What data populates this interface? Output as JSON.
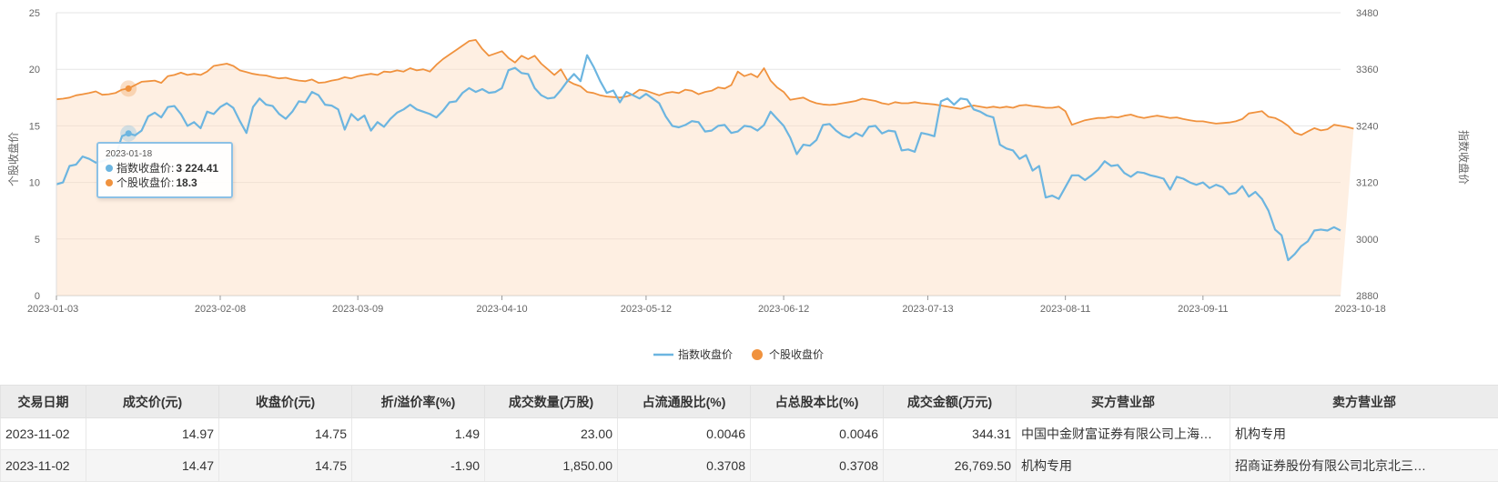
{
  "chart_data": {
    "type": "line",
    "y_left": {
      "title": "个股收盘价",
      "ticks": [
        0,
        5,
        10,
        15,
        20,
        25
      ],
      "range": [
        0,
        25
      ]
    },
    "y_right": {
      "title": "指数收盘价",
      "ticks": [
        2880,
        3000,
        3120,
        3240,
        3360,
        3480
      ],
      "range": [
        2880,
        3480
      ]
    },
    "x_ticks": [
      "2023-01-03",
      "2023-02-08",
      "2023-03-09",
      "2023-04-10",
      "2023-05-12",
      "2023-06-12",
      "2023-07-13",
      "2023-08-11",
      "2023-09-11",
      "2023-10-18"
    ],
    "grid": true,
    "legend_position": "bottom-center",
    "series": [
      {
        "name": "指数收盘价",
        "axis": "right",
        "color": "#6cb5e0",
        "values": [
          3116,
          3120,
          3155,
          3158,
          3175,
          3170,
          3162,
          3165,
          3170,
          3175,
          3218,
          3224,
          3220,
          3230,
          3260,
          3268,
          3258,
          3280,
          3282,
          3265,
          3240,
          3248,
          3235,
          3270,
          3265,
          3280,
          3288,
          3278,
          3250,
          3225,
          3280,
          3298,
          3285,
          3282,
          3265,
          3255,
          3270,
          3292,
          3290,
          3312,
          3305,
          3285,
          3283,
          3275,
          3232,
          3265,
          3252,
          3262,
          3230,
          3248,
          3238,
          3255,
          3268,
          3275,
          3285,
          3275,
          3270,
          3265,
          3258,
          3272,
          3290,
          3292,
          3310,
          3320,
          3312,
          3318,
          3310,
          3312,
          3320,
          3358,
          3363,
          3352,
          3350,
          3320,
          3305,
          3298,
          3300,
          3316,
          3335,
          3350,
          3335,
          3390,
          3365,
          3335,
          3310,
          3315,
          3290,
          3312,
          3305,
          3298,
          3308,
          3298,
          3288,
          3260,
          3240,
          3237,
          3242,
          3250,
          3248,
          3228,
          3230,
          3240,
          3242,
          3225,
          3228,
          3240,
          3238,
          3230,
          3242,
          3270,
          3255,
          3240,
          3215,
          3180,
          3200,
          3198,
          3210,
          3242,
          3244,
          3230,
          3220,
          3215,
          3225,
          3218,
          3238,
          3240,
          3224,
          3230,
          3228,
          3188,
          3190,
          3185,
          3225,
          3222,
          3218,
          3292,
          3298,
          3285,
          3298,
          3296,
          3275,
          3270,
          3262,
          3258,
          3200,
          3192,
          3188,
          3170,
          3178,
          3145,
          3155,
          3088,
          3092,
          3085,
          3110,
          3135,
          3135,
          3125,
          3135,
          3147,
          3165,
          3155,
          3157,
          3140,
          3132,
          3142,
          3140,
          3135,
          3132,
          3128,
          3105,
          3132,
          3128,
          3120,
          3115,
          3120,
          3108,
          3115,
          3110,
          3095,
          3098,
          3112,
          3090,
          3100,
          3085,
          3060,
          3020,
          3008,
          2955,
          2968,
          2985,
          2995,
          3018,
          3020,
          3018,
          3025,
          3018
        ]
      },
      {
        "name": "个股收盘价",
        "axis": "left",
        "color": "#f0923e",
        "values": [
          17.35,
          17.4,
          17.5,
          17.7,
          17.8,
          17.9,
          18.05,
          17.75,
          17.8,
          17.9,
          18.2,
          18.3,
          18.6,
          18.9,
          18.95,
          19.0,
          18.8,
          19.4,
          19.5,
          19.7,
          19.5,
          19.6,
          19.5,
          19.8,
          20.3,
          20.4,
          20.5,
          20.3,
          19.9,
          19.75,
          19.6,
          19.5,
          19.45,
          19.3,
          19.2,
          19.25,
          19.1,
          19.0,
          18.95,
          19.1,
          18.8,
          18.85,
          19.0,
          19.1,
          19.3,
          19.2,
          19.4,
          19.5,
          19.6,
          19.5,
          19.8,
          19.75,
          19.9,
          19.8,
          20.1,
          19.9,
          20.0,
          19.8,
          20.4,
          20.9,
          21.3,
          21.7,
          22.1,
          22.5,
          22.6,
          21.8,
          21.2,
          21.4,
          21.6,
          21.0,
          20.6,
          21.2,
          20.9,
          21.2,
          20.5,
          20.0,
          19.5,
          20.0,
          19.0,
          18.7,
          18.5,
          18.0,
          17.9,
          17.7,
          17.6,
          17.55,
          17.5,
          17.6,
          17.8,
          18.2,
          18.1,
          17.9,
          17.7,
          17.9,
          18.0,
          17.9,
          18.2,
          18.1,
          17.8,
          18.0,
          18.1,
          18.4,
          18.3,
          18.6,
          19.8,
          19.4,
          19.6,
          19.3,
          20.1,
          19.0,
          18.4,
          18.0,
          17.3,
          17.4,
          17.5,
          17.2,
          17.0,
          16.9,
          16.85,
          16.9,
          17.0,
          17.1,
          17.2,
          17.4,
          17.3,
          17.2,
          17.0,
          16.9,
          17.1,
          17.0,
          17.0,
          17.1,
          17.0,
          16.95,
          16.9,
          16.8,
          16.7,
          16.6,
          16.5,
          16.7,
          16.8,
          16.7,
          16.6,
          16.7,
          16.6,
          16.7,
          16.6,
          16.8,
          16.85,
          16.75,
          16.7,
          16.6,
          16.6,
          16.7,
          16.3,
          15.1,
          15.3,
          15.5,
          15.6,
          15.7,
          15.7,
          15.8,
          15.75,
          15.9,
          16.0,
          15.8,
          15.7,
          15.8,
          15.9,
          15.8,
          15.7,
          15.75,
          15.6,
          15.5,
          15.4,
          15.4,
          15.3,
          15.2,
          15.25,
          15.3,
          15.4,
          15.6,
          16.1,
          16.2,
          16.3,
          15.8,
          15.7,
          15.4,
          15.0,
          14.4,
          14.2,
          14.5,
          14.8,
          14.6,
          14.7,
          15.1,
          15.0,
          14.9,
          14.75
        ]
      }
    ],
    "tooltip": {
      "date": "2023-01-18",
      "index_label": "指数收盘价:",
      "index_value": "3 224.41",
      "stock_label": "个股收盘价:",
      "stock_value": "18.3",
      "point_index": 11
    }
  },
  "table": {
    "headers": [
      "交易日期",
      "成交价(元)",
      "收盘价(元)",
      "折/溢价率(%)",
      "成交数量(万股)",
      "占流通股比(%)",
      "占总股本比(%)",
      "成交金额(万元)",
      "买方营业部",
      "卖方营业部"
    ],
    "rows": [
      [
        "2023-11-02",
        "14.97",
        "14.75",
        "1.49",
        "23.00",
        "0.0046",
        "0.0046",
        "344.31",
        "中国中金财富证券有限公司上海…",
        "机构专用"
      ],
      [
        "2023-11-02",
        "14.47",
        "14.75",
        "-1.90",
        "1,850.00",
        "0.3708",
        "0.3708",
        "26,769.50",
        "机构专用",
        "招商证券股份有限公司北京北三…"
      ]
    ]
  }
}
